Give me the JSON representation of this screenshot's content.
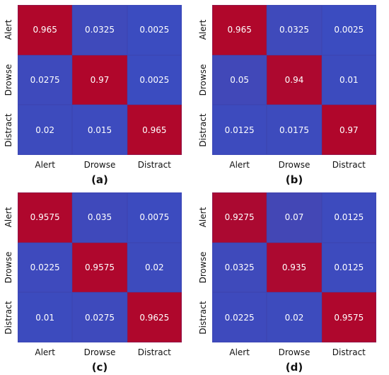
{
  "colors": {
    "low": "#3b4cc0",
    "high": "#b40426"
  },
  "chart_data": [
    {
      "type": "heatmap",
      "caption": "(a)",
      "x_labels": [
        "Alert",
        "Drowse",
        "Distract"
      ],
      "y_labels": [
        "Alert",
        "Drowse",
        "Distract"
      ],
      "values": [
        [
          0.965,
          0.0325,
          0.0025
        ],
        [
          0.0275,
          0.97,
          0.0025
        ],
        [
          0.02,
          0.015,
          0.965
        ]
      ],
      "value_labels": [
        [
          "0.965",
          "0.0325",
          "0.0025"
        ],
        [
          "0.0275",
          "0.97",
          "0.0025"
        ],
        [
          "0.02",
          "0.015",
          "0.965"
        ]
      ],
      "vmin": 0,
      "vmax": 1
    },
    {
      "type": "heatmap",
      "caption": "(b)",
      "x_labels": [
        "Alert",
        "Drowse",
        "Distract"
      ],
      "y_labels": [
        "Alert",
        "Drowse",
        "Distract"
      ],
      "values": [
        [
          0.965,
          0.0325,
          0.0025
        ],
        [
          0.05,
          0.94,
          0.01
        ],
        [
          0.0125,
          0.0175,
          0.97
        ]
      ],
      "value_labels": [
        [
          "0.965",
          "0.0325",
          "0.0025"
        ],
        [
          "0.05",
          "0.94",
          "0.01"
        ],
        [
          "0.0125",
          "0.0175",
          "0.97"
        ]
      ],
      "vmin": 0,
      "vmax": 1
    },
    {
      "type": "heatmap",
      "caption": "(c)",
      "x_labels": [
        "Alert",
        "Drowse",
        "Distract"
      ],
      "y_labels": [
        "Alert",
        "Drowse",
        "Distract"
      ],
      "values": [
        [
          0.9575,
          0.035,
          0.0075
        ],
        [
          0.0225,
          0.9575,
          0.02
        ],
        [
          0.01,
          0.0275,
          0.9625
        ]
      ],
      "value_labels": [
        [
          "0.9575",
          "0.035",
          "0.0075"
        ],
        [
          "0.0225",
          "0.9575",
          "0.02"
        ],
        [
          "0.01",
          "0.0275",
          "0.9625"
        ]
      ],
      "vmin": 0,
      "vmax": 1
    },
    {
      "type": "heatmap",
      "caption": "(d)",
      "x_labels": [
        "Alert",
        "Drowse",
        "Distract"
      ],
      "y_labels": [
        "Alert",
        "Drowse",
        "Distract"
      ],
      "values": [
        [
          0.9275,
          0.07,
          0.0125
        ],
        [
          0.0325,
          0.935,
          0.0125
        ],
        [
          0.0225,
          0.02,
          0.9575
        ]
      ],
      "value_labels": [
        [
          "0.9275",
          "0.07",
          "0.0125"
        ],
        [
          "0.0325",
          "0.935",
          "0.0125"
        ],
        [
          "0.0225",
          "0.02",
          "0.9575"
        ]
      ],
      "vmin": 0,
      "vmax": 1
    }
  ]
}
